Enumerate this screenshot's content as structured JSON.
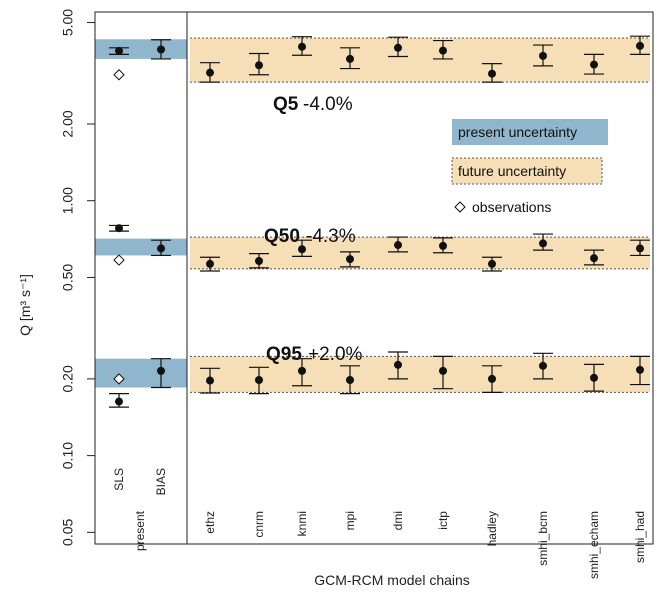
{
  "chart_data": {
    "type": "scatter",
    "y_scale": "log",
    "ylim": [
      0.045,
      5.5
    ],
    "ylabel": "Q [m³ s⁻¹]",
    "xlabel": "GCM-RCM model chains",
    "yticks": [
      {
        "value": 5.0,
        "label": "5.00"
      },
      {
        "value": 2.0,
        "label": "2.00"
      },
      {
        "value": 1.0,
        "label": "1.00"
      },
      {
        "value": 0.5,
        "label": "0.50"
      },
      {
        "value": 0.2,
        "label": "0.20"
      },
      {
        "value": 0.1,
        "label": "0.10"
      },
      {
        "value": 0.05,
        "label": "0.05"
      }
    ],
    "present_labels": [
      "SLS",
      "BIAS"
    ],
    "present_group_label": "present",
    "future_labels": [
      "ethz",
      "cnrm",
      "knmi",
      "mpi",
      "dmi",
      "ictp",
      "hadley",
      "smhi_bcm",
      "smhi_echam",
      "smhi_had"
    ],
    "quantiles": [
      {
        "name": "Q5",
        "change": "-4.0%",
        "present_band": [
          3.6,
          4.3
        ],
        "future_band": [
          2.92,
          4.35
        ],
        "present": [
          {
            "value": 3.87,
            "low": 3.75,
            "high": 3.98,
            "obs": 3.12
          },
          {
            "value": 3.92,
            "low": 3.6,
            "high": 4.28
          }
        ],
        "future": [
          {
            "value": 3.18,
            "low": 2.92,
            "high": 3.48
          },
          {
            "value": 3.4,
            "low": 3.12,
            "high": 3.78
          },
          {
            "value": 4.02,
            "low": 3.72,
            "high": 4.4
          },
          {
            "value": 3.6,
            "low": 3.3,
            "high": 3.98
          },
          {
            "value": 3.98,
            "low": 3.68,
            "high": 4.38
          },
          {
            "value": 3.88,
            "low": 3.6,
            "high": 4.25
          },
          {
            "value": 3.15,
            "low": 2.92,
            "high": 3.45
          },
          {
            "value": 3.7,
            "low": 3.38,
            "high": 4.08
          },
          {
            "value": 3.42,
            "low": 3.14,
            "high": 3.75
          },
          {
            "value": 4.05,
            "low": 3.75,
            "high": 4.42
          }
        ]
      },
      {
        "name": "Q50",
        "change": "-4.3%",
        "present_band": [
          0.61,
          0.71
        ],
        "future_band": [
          0.54,
          0.72
        ],
        "present": [
          {
            "value": 0.78,
            "low": 0.76,
            "high": 0.8,
            "obs": 0.585
          },
          {
            "value": 0.65,
            "low": 0.61,
            "high": 0.7
          }
        ],
        "future": [
          {
            "value": 0.565,
            "low": 0.53,
            "high": 0.6
          },
          {
            "value": 0.58,
            "low": 0.545,
            "high": 0.62
          },
          {
            "value": 0.645,
            "low": 0.605,
            "high": 0.7
          },
          {
            "value": 0.59,
            "low": 0.55,
            "high": 0.63
          },
          {
            "value": 0.67,
            "low": 0.63,
            "high": 0.72
          },
          {
            "value": 0.665,
            "low": 0.625,
            "high": 0.715
          },
          {
            "value": 0.565,
            "low": 0.53,
            "high": 0.6
          },
          {
            "value": 0.68,
            "low": 0.64,
            "high": 0.74
          },
          {
            "value": 0.595,
            "low": 0.56,
            "high": 0.64
          },
          {
            "value": 0.65,
            "low": 0.61,
            "high": 0.7
          }
        ]
      },
      {
        "name": "Q95",
        "change": "+2.0%",
        "present_band": [
          0.185,
          0.24
        ],
        "future_band": [
          0.177,
          0.245
        ],
        "present": [
          {
            "value": 0.163,
            "low": 0.155,
            "high": 0.175,
            "obs": 0.2
          },
          {
            "value": 0.215,
            "low": 0.185,
            "high": 0.24
          }
        ],
        "future": [
          {
            "value": 0.197,
            "low": 0.176,
            "high": 0.22
          },
          {
            "value": 0.198,
            "low": 0.175,
            "high": 0.222
          },
          {
            "value": 0.215,
            "low": 0.188,
            "high": 0.24
          },
          {
            "value": 0.198,
            "low": 0.175,
            "high": 0.225
          },
          {
            "value": 0.227,
            "low": 0.2,
            "high": 0.255
          },
          {
            "value": 0.215,
            "low": 0.183,
            "high": 0.245
          },
          {
            "value": 0.2,
            "low": 0.177,
            "high": 0.225
          },
          {
            "value": 0.225,
            "low": 0.2,
            "high": 0.252
          },
          {
            "value": 0.202,
            "low": 0.179,
            "high": 0.228
          },
          {
            "value": 0.217,
            "low": 0.19,
            "high": 0.245
          }
        ]
      }
    ],
    "legend": {
      "position": "right",
      "items": [
        {
          "label": "present uncertainty",
          "kind": "present-band"
        },
        {
          "label": "future uncertainty",
          "kind": "future-band"
        },
        {
          "label": "observations",
          "kind": "diamond",
          "symbol": "◇"
        }
      ]
    },
    "colors": {
      "present_band": "#8fb6cc",
      "future_band": "#f6dfb6",
      "future_border": "#555555",
      "point": "#111111"
    }
  }
}
